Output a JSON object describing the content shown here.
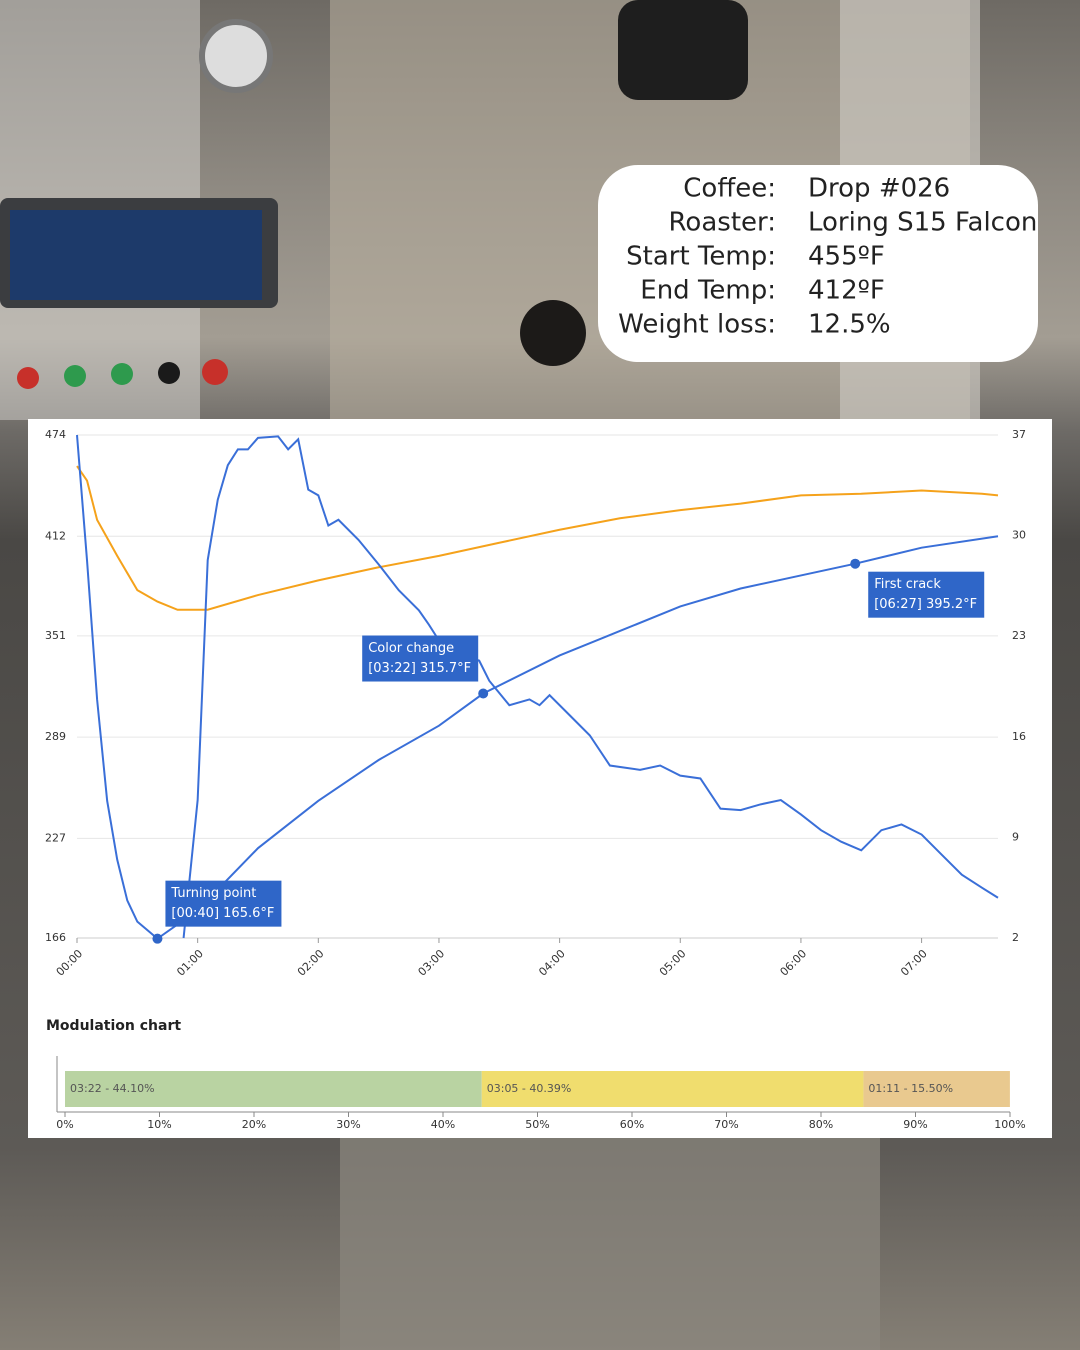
{
  "info": {
    "rows": [
      {
        "label": "Coffee:",
        "value": "Drop #026"
      },
      {
        "label": "Roaster:",
        "value": "Loring S15 Falcon"
      },
      {
        "label": "Start Temp:",
        "value": "455ºF"
      },
      {
        "label": "End Temp:",
        "value": "412ºF"
      },
      {
        "label": "Weight loss:",
        "value": "12.5%"
      }
    ]
  },
  "chart_data": [
    {
      "type": "line",
      "xlim": [
        0,
        458
      ],
      "xticks": [
        {
          "value": 0,
          "label": "00:00"
        },
        {
          "value": 60,
          "label": "01:00"
        },
        {
          "value": 120,
          "label": "02:00"
        },
        {
          "value": 180,
          "label": "03:00"
        },
        {
          "value": 240,
          "label": "04:00"
        },
        {
          "value": 300,
          "label": "05:00"
        },
        {
          "value": 360,
          "label": "06:00"
        },
        {
          "value": 420,
          "label": "07:00"
        }
      ],
      "ylim": [
        166,
        474
      ],
      "yticks": [
        166,
        227,
        289,
        351,
        412,
        474
      ],
      "y2lim": [
        2,
        37
      ],
      "y2ticks": [
        2,
        9,
        16,
        23,
        30,
        37
      ],
      "grid": true,
      "series": [
        {
          "color": "#f5a21b",
          "x": [
            0,
            5,
            10,
            20,
            30,
            40,
            50,
            65,
            90,
            120,
            150,
            180,
            210,
            240,
            270,
            300,
            330,
            360,
            390,
            420,
            450,
            458
          ],
          "values": [
            455,
            446,
            422,
            400,
            379,
            372,
            367,
            367,
            376,
            385,
            393,
            400,
            408,
            416,
            423,
            428,
            432,
            437,
            438,
            440,
            438,
            437
          ]
        },
        {
          "color": "#3a6fd8",
          "x": [
            0,
            5,
            10,
            15,
            20,
            25,
            30,
            40,
            60,
            90,
            120,
            150,
            180,
            202,
            240,
            270,
            300,
            330,
            360,
            387,
            420,
            458
          ],
          "values": [
            474,
            397,
            312,
            250,
            214,
            189,
            176,
            165.6,
            183,
            221,
            250,
            275,
            296,
            315.7,
            339,
            354,
            369,
            380,
            388,
            395.2,
            405,
            412
          ]
        },
        {
          "color": "#3a6fd8",
          "axis": "y2",
          "x": [
            53,
            60,
            65,
            70,
            75,
            80,
            85,
            90,
            100,
            105,
            110,
            115,
            120,
            125,
            130,
            140,
            150,
            160,
            170,
            175,
            180,
            190,
            200,
            205,
            215,
            225,
            230,
            235,
            245,
            255,
            265,
            280,
            290,
            300,
            310,
            320,
            330,
            340,
            350,
            360,
            370,
            380,
            390,
            400,
            410,
            420,
            430,
            440,
            450,
            458
          ],
          "values": [
            2,
            11.6,
            28.3,
            32.5,
            34.9,
            36,
            36,
            36.8,
            36.9,
            36,
            36.7,
            33.2,
            32.8,
            30.7,
            31.1,
            29.7,
            28,
            26.2,
            24.8,
            23.8,
            22.7,
            21.7,
            21.3,
            19.9,
            18.2,
            18.6,
            18.2,
            18.9,
            17.5,
            16.1,
            14,
            13.7,
            14,
            13.3,
            13.1,
            11,
            10.9,
            11.3,
            11.6,
            10.6,
            9.5,
            8.7,
            8.1,
            9.5,
            9.9,
            9.2,
            7.8,
            6.4,
            5.5,
            4.8
          ]
        }
      ],
      "annotations": [
        {
          "label": "Turning point",
          "text": "[00:40] 165.6°F",
          "x": 40,
          "y": 165.6
        },
        {
          "label": "Color change",
          "text": "[03:22] 315.7°F",
          "x": 202,
          "y": 315.7
        },
        {
          "label": "First crack",
          "text": "[06:27] 395.2°F",
          "x": 387,
          "y": 395.2
        }
      ]
    },
    {
      "type": "bar",
      "title": "Modulation chart",
      "orientation": "horizontal",
      "stacked": true,
      "xlim": [
        0,
        100
      ],
      "xticks": [
        {
          "value": 0,
          "label": "0%"
        },
        {
          "value": 10,
          "label": "10%"
        },
        {
          "value": 20,
          "label": "20%"
        },
        {
          "value": 30,
          "label": "30%"
        },
        {
          "value": 40,
          "label": "40%"
        },
        {
          "value": 50,
          "label": "50%"
        },
        {
          "value": 60,
          "label": "60%"
        },
        {
          "value": 70,
          "label": "70%"
        },
        {
          "value": 80,
          "label": "80%"
        },
        {
          "value": 90,
          "label": "90%"
        },
        {
          "value": 100,
          "label": "100%"
        }
      ],
      "values": [
        44.1,
        40.39,
        15.5
      ],
      "value_labels": [
        "03:22 - 44.10%",
        "03:05 - 40.39%",
        "01:11 - 15.50%"
      ],
      "colors": [
        "#b9d3a2",
        "#f0dd6e",
        "#e9c98f"
      ]
    }
  ]
}
